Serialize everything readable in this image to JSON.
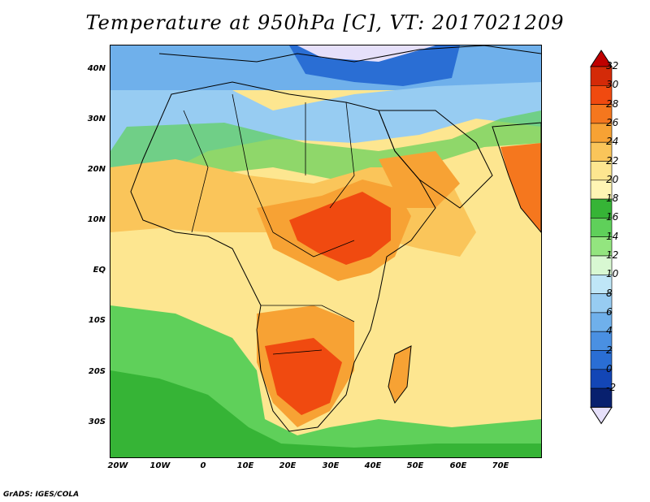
{
  "title": "Temperature at 950hPa [C], VT: 2017021209",
  "credit": "GrADS: IGES/COLA",
  "lat_labels": [
    "40N",
    "30N",
    "20N",
    "10N",
    "EQ",
    "10S",
    "20S",
    "30S"
  ],
  "lon_labels": [
    "20W",
    "10W",
    "0",
    "10E",
    "20E",
    "30E",
    "40E",
    "50E",
    "60E",
    "70E"
  ],
  "colorbar": {
    "labels": [
      "32",
      "30",
      "28",
      "26",
      "24",
      "22",
      "20",
      "18",
      "16",
      "14",
      "12",
      "10",
      "8",
      "6",
      "4",
      "2",
      "0",
      "-2"
    ],
    "colors": [
      "#d42a08",
      "#f04a10",
      "#f5771e",
      "#f7a234",
      "#fac55a",
      "#fde690",
      "#fff5b4",
      "#36b436",
      "#5fd05a",
      "#93e57f",
      "#d8f8d2",
      "#bfe6f7",
      "#97ccf2",
      "#6fb0eb",
      "#4a90e2",
      "#2a6ed4",
      "#1346b6",
      "#08206e"
    ],
    "under_color": "#e6e0fa",
    "over_color": "#c00000"
  }
}
